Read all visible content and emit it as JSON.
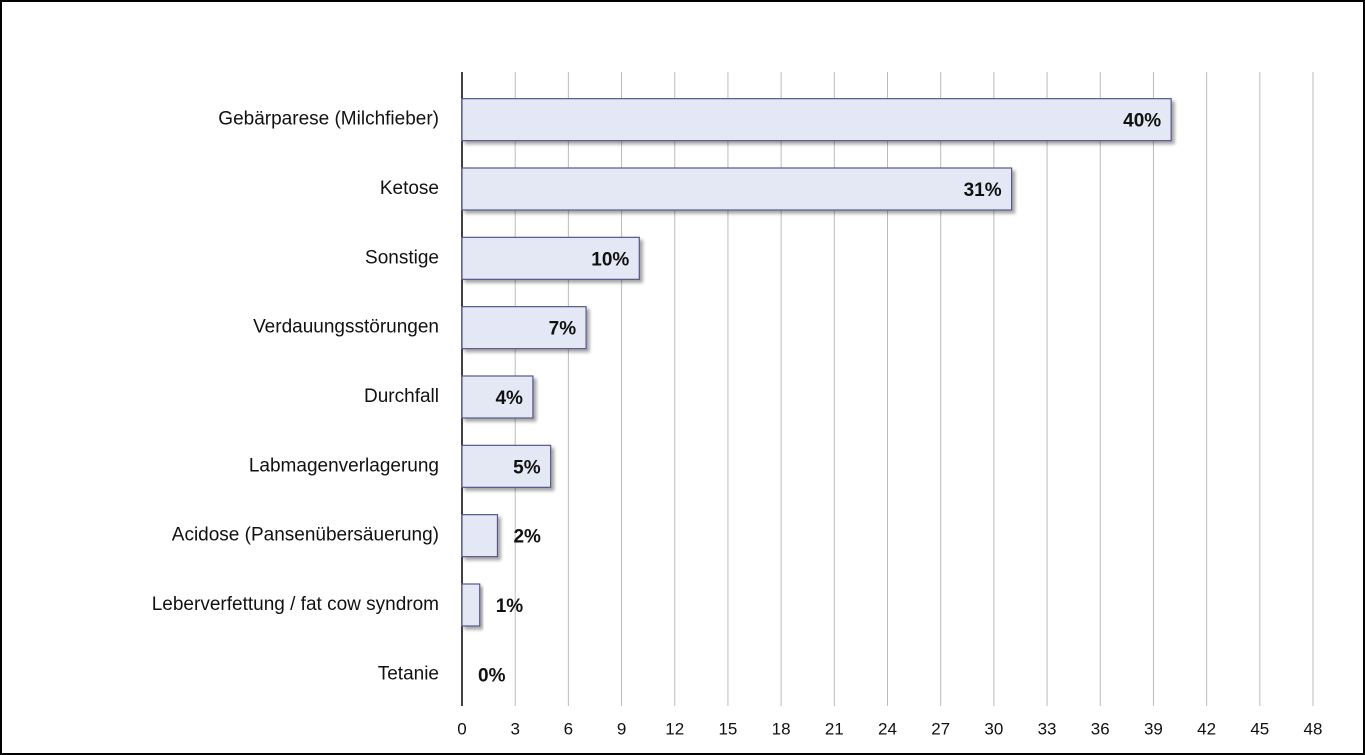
{
  "chart_data": {
    "type": "bar",
    "orientation": "horizontal",
    "categories": [
      "Gebärparese (Milchfieber)",
      "Ketose",
      "Sonstige",
      "Verdauungsstörungen",
      "Durchfall",
      "Labmagenverlagerung",
      "Acidose (Pansenübersäuerung)",
      "Leberverfettung / fat cow syndrom",
      "Tetanie"
    ],
    "values": [
      40,
      31,
      10,
      7,
      4,
      5,
      2,
      1,
      0
    ],
    "value_labels": [
      "40%",
      "31%",
      "10%",
      "7%",
      "4%",
      "5%",
      "2%",
      "1%",
      "0%"
    ],
    "color": "#e4e8f4",
    "xlim": [
      0,
      48
    ],
    "xticks": [
      0,
      3,
      6,
      9,
      12,
      15,
      18,
      21,
      24,
      27,
      30,
      33,
      36,
      39,
      42,
      45,
      48
    ],
    "grid": true
  }
}
